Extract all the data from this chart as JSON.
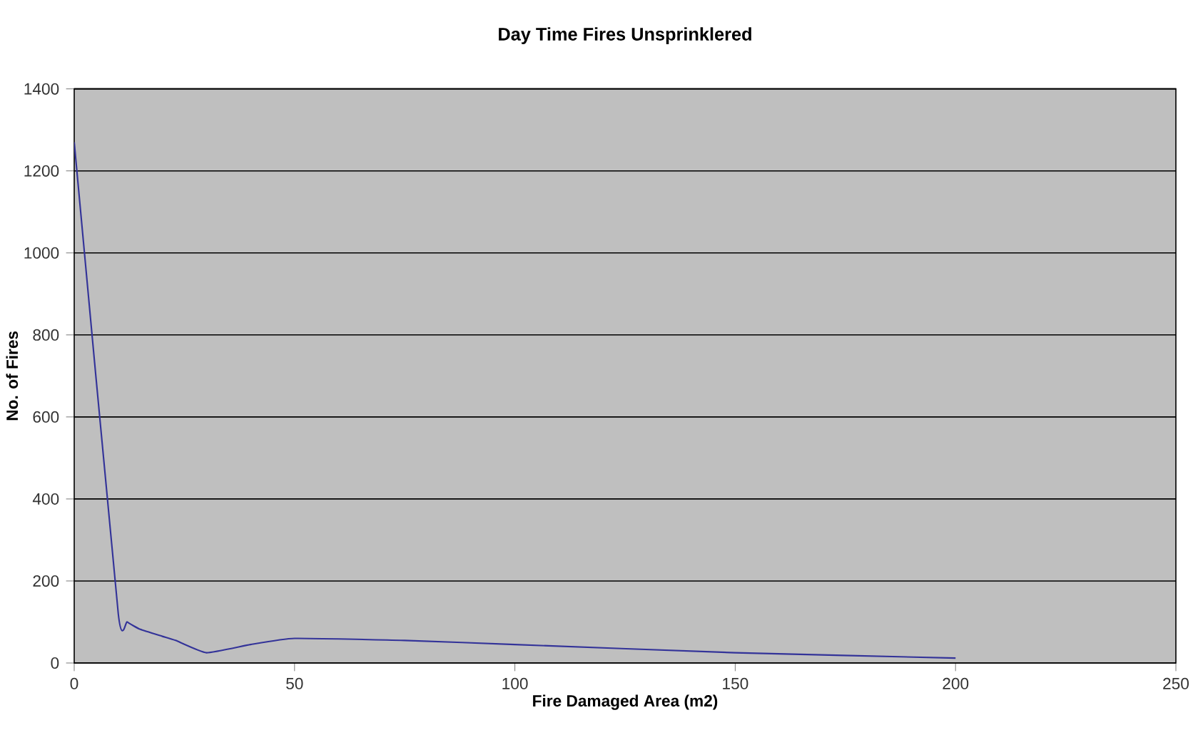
{
  "chart_data": {
    "type": "line",
    "title": "Day Time Fires Unsprinklered",
    "xlabel": "Fire Damaged Area (m2)",
    "ylabel": "No. of Fires",
    "x": [
      0,
      10,
      12,
      15,
      20,
      23,
      30,
      40,
      50,
      75,
      100,
      150,
      200
    ],
    "series": [
      {
        "color": "#333399",
        "values": [
          1270,
          120,
          100,
          82,
          65,
          55,
          25,
          45,
          60,
          55,
          45,
          25,
          12
        ]
      }
    ],
    "xlim": [
      0,
      250
    ],
    "xticks": [
      0,
      50,
      100,
      150,
      200,
      250
    ],
    "ylim": [
      0,
      1400
    ],
    "yticks": [
      0,
      200,
      400,
      600,
      800,
      1000,
      1200,
      1400
    ],
    "grid": "y",
    "marker": "none",
    "line_style": "solid"
  }
}
